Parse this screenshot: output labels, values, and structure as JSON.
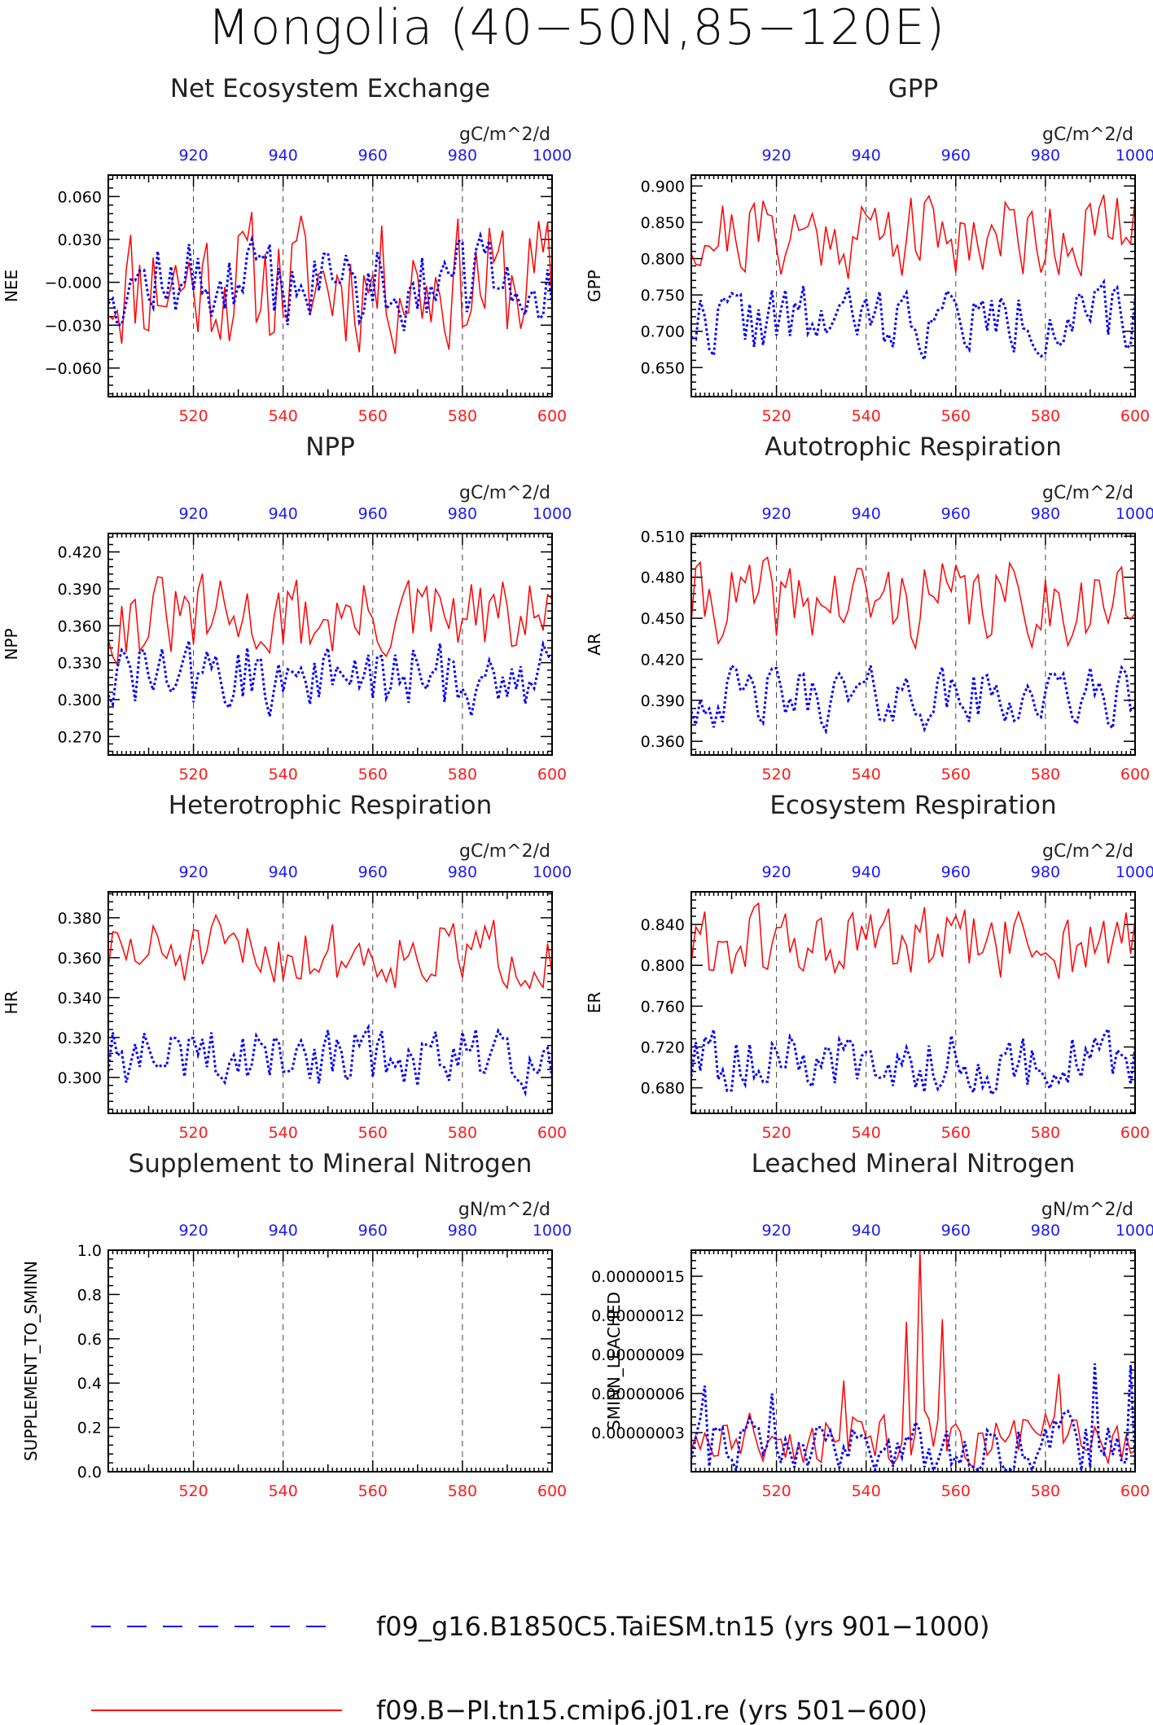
{
  "figure": {
    "title": "Mongolia (40−50N,85−120E)"
  },
  "legend": {
    "items": [
      {
        "label": "f09_g16.B1850C5.TaiESM.tn15 (yrs 901−1000)",
        "color": "#0000ff",
        "style": "dashed"
      },
      {
        "label": "f09.B−PI.tn15.cmip6.j01.re (yrs 501−600)",
        "color": "#ff0000",
        "style": "solid"
      }
    ]
  },
  "colors": {
    "red_series": "#ff0000",
    "blue_series": "#0000ff",
    "red_ticks": "#ff1a1a",
    "blue_ticks": "#1a1aff"
  },
  "chart_data": [
    {
      "type": "line",
      "title": "Net Ecosystem Exchange",
      "units": "gC/m^2/d",
      "ylabel": "NEE",
      "xlim_bottom": [
        501,
        600
      ],
      "xlim_top": [
        901,
        1000
      ],
      "ylim": [
        -0.08,
        0.075
      ],
      "yticks": [
        0.06,
        0.03,
        0.0,
        -0.03,
        -0.06
      ],
      "ytick_labels": [
        "0.060",
        "0.030",
        "−0.000",
        "−0.030",
        "−0.060"
      ],
      "xticks_bottom": [
        520,
        540,
        560,
        580,
        600
      ],
      "xticks_top": [
        920,
        940,
        960,
        980,
        1000
      ],
      "grid_x_dashed": [
        520,
        540,
        560,
        580
      ],
      "series": [
        {
          "name": "f09.B−PI.tn15.cmip6.j01.re (yrs 501−600)",
          "gen": {
            "mean": 0.0,
            "amp": 0.028,
            "min": -0.066,
            "max": 0.07,
            "seed": 11
          }
        },
        {
          "name": "f09_g16.B1850C5.TaiESM.tn15 (yrs 901−1000)",
          "gen": {
            "mean": 0.0,
            "amp": 0.018,
            "min": -0.036,
            "max": 0.061,
            "seed": 12
          }
        }
      ]
    },
    {
      "type": "line",
      "title": "GPP",
      "units": "gC/m^2/d",
      "ylabel": "GPP",
      "xlim_bottom": [
        501,
        600
      ],
      "xlim_top": [
        901,
        1000
      ],
      "ylim": [
        0.61,
        0.915
      ],
      "yticks": [
        0.9,
        0.85,
        0.8,
        0.75,
        0.7,
        0.65
      ],
      "ytick_labels": [
        "0.900",
        "0.850",
        "0.800",
        "0.750",
        "0.700",
        "0.650"
      ],
      "xticks_bottom": [
        520,
        540,
        560,
        580,
        600
      ],
      "xticks_top": [
        920,
        940,
        960,
        980,
        1000
      ],
      "grid_x_dashed": [
        520,
        540,
        560,
        580
      ],
      "series": [
        {
          "name": "f09.B−PI.tn15.cmip6.j01.re (yrs 501−600)",
          "gen": {
            "mean": 0.835,
            "amp": 0.035,
            "min": 0.7,
            "max": 0.908,
            "seed": 21
          }
        },
        {
          "name": "f09_g16.B1850C5.TaiESM.tn15 (yrs 901−1000)",
          "gen": {
            "mean": 0.715,
            "amp": 0.028,
            "min": 0.618,
            "max": 0.785,
            "seed": 22
          }
        }
      ]
    },
    {
      "type": "line",
      "title": "NPP",
      "units": "gC/m^2/d",
      "ylabel": "NPP",
      "xlim_bottom": [
        501,
        600
      ],
      "xlim_top": [
        901,
        1000
      ],
      "ylim": [
        0.255,
        0.435
      ],
      "yticks": [
        0.42,
        0.39,
        0.36,
        0.33,
        0.3,
        0.27
      ],
      "ytick_labels": [
        "0.420",
        "0.390",
        "0.360",
        "0.330",
        "0.300",
        "0.270"
      ],
      "xticks_bottom": [
        520,
        540,
        560,
        580,
        600
      ],
      "xticks_top": [
        920,
        940,
        960,
        980,
        1000
      ],
      "grid_x_dashed": [
        520,
        540,
        560,
        580
      ],
      "series": [
        {
          "name": "f09.B−PI.tn15.cmip6.j01.re (yrs 501−600)",
          "gen": {
            "mean": 0.365,
            "amp": 0.02,
            "min": 0.315,
            "max": 0.424,
            "seed": 31
          }
        },
        {
          "name": "f09_g16.B1850C5.TaiESM.tn15 (yrs 901−1000)",
          "gen": {
            "mean": 0.318,
            "amp": 0.018,
            "min": 0.264,
            "max": 0.366,
            "seed": 32
          }
        }
      ]
    },
    {
      "type": "line",
      "title": "Autotrophic Respiration",
      "units": "gC/m^2/d",
      "ylabel": "AR",
      "xlim_bottom": [
        501,
        600
      ],
      "xlim_top": [
        901,
        1000
      ],
      "ylim": [
        0.35,
        0.512
      ],
      "yticks": [
        0.51,
        0.48,
        0.45,
        0.42,
        0.39,
        0.36
      ],
      "ytick_labels": [
        "0.510",
        "0.480",
        "0.450",
        "0.420",
        "0.390",
        "0.360"
      ],
      "xticks_bottom": [
        520,
        540,
        560,
        580,
        600
      ],
      "xticks_top": [
        920,
        940,
        960,
        980,
        1000
      ],
      "grid_x_dashed": [
        520,
        540,
        560,
        580
      ],
      "series": [
        {
          "name": "f09.B−PI.tn15.cmip6.j01.re (yrs 501−600)",
          "gen": {
            "mean": 0.462,
            "amp": 0.018,
            "min": 0.385,
            "max": 0.502,
            "seed": 41
          }
        },
        {
          "name": "f09_g16.B1850C5.TaiESM.tn15 (yrs 901−1000)",
          "gen": {
            "mean": 0.392,
            "amp": 0.013,
            "min": 0.352,
            "max": 0.438,
            "seed": 42
          }
        }
      ]
    },
    {
      "type": "line",
      "title": "Heterotrophic Respiration",
      "units": "gC/m^2/d",
      "ylabel": "HR",
      "xlim_bottom": [
        501,
        600
      ],
      "xlim_top": [
        901,
        1000
      ],
      "ylim": [
        0.282,
        0.393
      ],
      "yticks": [
        0.38,
        0.36,
        0.34,
        0.32,
        0.3
      ],
      "ytick_labels": [
        "0.380",
        "0.360",
        "0.340",
        "0.320",
        "0.300"
      ],
      "xticks_bottom": [
        520,
        540,
        560,
        580,
        600
      ],
      "xticks_top": [
        920,
        940,
        960,
        980,
        1000
      ],
      "grid_x_dashed": [
        520,
        540,
        560,
        580
      ],
      "series": [
        {
          "name": "f09.B−PI.tn15.cmip6.j01.re (yrs 501−600)",
          "gen": {
            "mean": 0.362,
            "amp": 0.01,
            "min": 0.318,
            "max": 0.391,
            "seed": 51
          }
        },
        {
          "name": "f09_g16.B1850C5.TaiESM.tn15 (yrs 901−1000)",
          "gen": {
            "mean": 0.31,
            "amp": 0.009,
            "min": 0.286,
            "max": 0.338,
            "seed": 52
          }
        }
      ]
    },
    {
      "type": "line",
      "title": "Ecosystem Respiration",
      "units": "gC/m^2/d",
      "ylabel": "ER",
      "xlim_bottom": [
        501,
        600
      ],
      "xlim_top": [
        901,
        1000
      ],
      "ylim": [
        0.655,
        0.872
      ],
      "yticks": [
        0.84,
        0.8,
        0.76,
        0.72,
        0.68
      ],
      "ytick_labels": [
        "0.840",
        "0.800",
        "0.760",
        "0.720",
        "0.680"
      ],
      "xticks_bottom": [
        520,
        540,
        560,
        580,
        600
      ],
      "xticks_top": [
        920,
        940,
        960,
        980,
        1000
      ],
      "grid_x_dashed": [
        520,
        540,
        560,
        580
      ],
      "series": [
        {
          "name": "f09.B−PI.tn15.cmip6.j01.re (yrs 501−600)",
          "gen": {
            "mean": 0.82,
            "amp": 0.022,
            "min": 0.705,
            "max": 0.862,
            "seed": 61
          }
        },
        {
          "name": "f09_g16.B1850C5.TaiESM.tn15 (yrs 901−1000)",
          "gen": {
            "mean": 0.705,
            "amp": 0.018,
            "min": 0.66,
            "max": 0.752,
            "seed": 62
          }
        }
      ]
    },
    {
      "type": "line",
      "title": "Supplement to Mineral Nitrogen",
      "units": "gN/m^2/d",
      "ylabel": "SUPPLEMENT_TO_SMINN",
      "xlim_bottom": [
        501,
        600
      ],
      "xlim_top": [
        901,
        1000
      ],
      "ylim": [
        0.0,
        1.0
      ],
      "yticks": [
        1.0,
        0.8,
        0.6,
        0.4,
        0.2,
        0.0
      ],
      "ytick_labels": [
        "1.0",
        "0.8",
        "0.6",
        "0.4",
        "0.2",
        "0.0"
      ],
      "xticks_bottom": [
        520,
        540,
        560,
        580,
        600
      ],
      "xticks_top": [
        920,
        940,
        960,
        980,
        1000
      ],
      "grid_x_dashed": [
        520,
        540,
        560,
        580
      ],
      "series": []
    },
    {
      "type": "line",
      "title": "Leached Mineral Nitrogen",
      "units": "gN/m^2/d",
      "ylabel": "SMINN_LEACHED",
      "xlim_bottom": [
        501,
        600
      ],
      "xlim_top": [
        901,
        1000
      ],
      "ylim": [
        0.0,
        1.7e-07
      ],
      "yticks": [
        1.5e-07,
        1.2e-07,
        9e-08,
        6e-08,
        3e-08
      ],
      "ytick_labels": [
        "0.00000015",
        "0.00000012",
        "0.00000009",
        "0.00000006",
        "0.00000003"
      ],
      "xticks_bottom": [
        520,
        540,
        560,
        580,
        600
      ],
      "xticks_top": [
        920,
        940,
        960,
        980,
        1000
      ],
      "grid_x_dashed": [
        520,
        540,
        560,
        580
      ],
      "series": [
        {
          "name": "f09.B−PI.tn15.cmip6.j01.re (yrs 501−600)",
          "gen": {
            "mean": 2.5e-08,
            "amp": 1.2e-08,
            "min": 5e-10,
            "max": 1.7e-07,
            "seed": 81,
            "spikes": [
              [
                552,
                1.7e-07
              ],
              [
                549,
                1.15e-07
              ],
              [
                557,
                1.17e-07
              ],
              [
                535,
                7e-08
              ],
              [
                583,
                7.5e-08
              ]
            ]
          }
        },
        {
          "name": "f09_g16.B1850C5.TaiESM.tn15 (yrs 901−1000)",
          "gen": {
            "mean": 2e-08,
            "amp": 1.3e-08,
            "min": 1e-09,
            "max": 8.3e-08,
            "seed": 82,
            "spikes": [
              [
                991,
                8.3e-08
              ],
              [
                999,
                8.2e-08
              ],
              [
                904,
                6.6e-08
              ],
              [
                919,
                6e-08
              ]
            ]
          }
        }
      ]
    }
  ]
}
